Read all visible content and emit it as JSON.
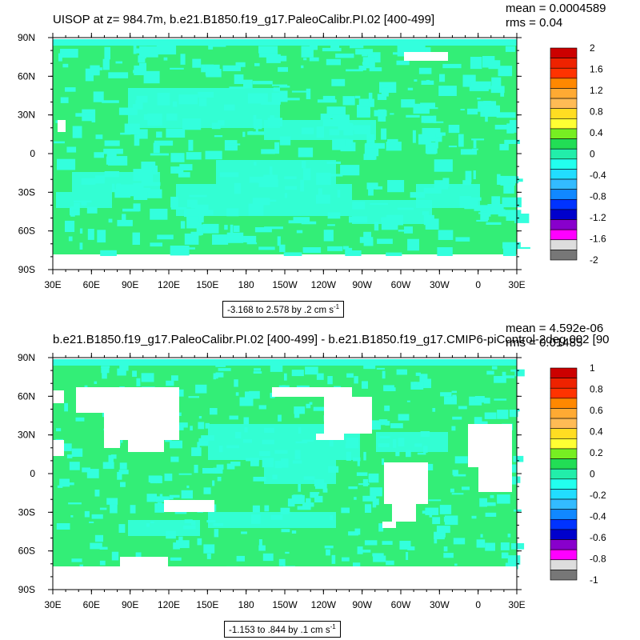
{
  "chart_data": [
    {
      "type": "heatmap",
      "title": "UISOP at z= 984.7m, b.e21.B1850.f19_g17.PaleoCalibr.PI.02 [400-499]",
      "stats": {
        "mean": "mean = 0.0004589",
        "rms": "rms = 0.04"
      },
      "x_ticks": [
        "30E",
        "60E",
        "90E",
        "120E",
        "150E",
        "180",
        "150W",
        "120W",
        "90W",
        "60W",
        "30W",
        "0",
        "30E"
      ],
      "y_ticks": [
        "90N",
        "60N",
        "30N",
        "0",
        "30S",
        "60S",
        "90S"
      ],
      "colorbar": {
        "levels": [
          "2",
          "1.6",
          "1.2",
          "0.8",
          "0.4",
          "0",
          "-0.4",
          "-0.8",
          "-1.2",
          "-1.6",
          "-2"
        ],
        "colors": [
          "#cc0000",
          "#ee2200",
          "#ff3300",
          "#ff8800",
          "#ffaa33",
          "#ffbb55",
          "#ffdd22",
          "#ffff33",
          "#77ee22",
          "#22dd55",
          "#22eeaa",
          "#22ffee",
          "#22ddff",
          "#33bbff",
          "#1188ff",
          "#0033ff",
          "#0000cc",
          "#8800cc",
          "#ff00ff",
          "#dddddd",
          "#777777"
        ]
      },
      "range_label": {
        "text": "-3.168 to 2.578 by .2 cm s",
        "unit_exp": "-1"
      },
      "field": {
        "base_color": "#33ee77",
        "secondary_color": "#33ffdd"
      }
    },
    {
      "type": "heatmap",
      "title": "b.e21.B1850.f19_g17.PaleoCalibr.PI.02 [400-499] - b.e21.B1850.f19_g17.CMIP6-piControl-2deg.002 [90",
      "stats": {
        "mean": "mean = 4.592e-06",
        "rms": "rms = 0.01485"
      },
      "x_ticks": [
        "30E",
        "60E",
        "90E",
        "120E",
        "150E",
        "180",
        "150W",
        "120W",
        "90W",
        "60W",
        "30W",
        "0",
        "30E"
      ],
      "y_ticks": [
        "90N",
        "60N",
        "30N",
        "0",
        "30S",
        "60S",
        "90S"
      ],
      "colorbar": {
        "levels": [
          "1",
          "0.8",
          "0.6",
          "0.4",
          "0.2",
          "0",
          "-0.2",
          "-0.4",
          "-0.6",
          "-0.8",
          "-1"
        ],
        "colors": [
          "#cc0000",
          "#ee2200",
          "#ff3300",
          "#ff8800",
          "#ffaa33",
          "#ffbb55",
          "#ffdd22",
          "#ffff33",
          "#77ee22",
          "#22dd55",
          "#22eeaa",
          "#22ffee",
          "#22ddff",
          "#33bbff",
          "#1188ff",
          "#0033ff",
          "#0000cc",
          "#8800cc",
          "#ff00ff",
          "#dddddd",
          "#777777"
        ]
      },
      "range_label": {
        "text": "-1.153 to .844 by .1 cm s",
        "unit_exp": "-1"
      },
      "field": {
        "base_color": "#33ee77",
        "secondary_color": "#33ffdd"
      }
    }
  ]
}
